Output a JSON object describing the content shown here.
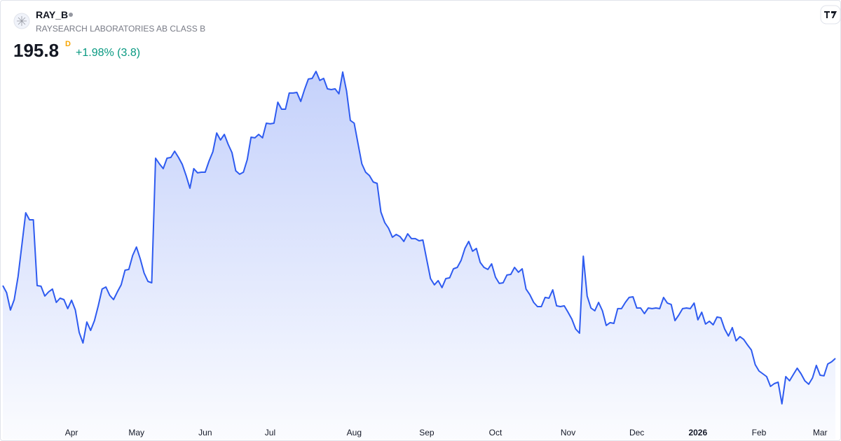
{
  "chart_data": {
    "type": "area",
    "symbol": "RAY_B",
    "subtitle": "RAYSEARCH LABORATORIES AB CLASS B",
    "last_price": 195.8,
    "interval": "D",
    "change": "+1.98% (3.8)",
    "color": "#2e5bf0",
    "ylim": [
      165,
      343.5
    ],
    "xlim": [
      0,
      218
    ],
    "xticks": [
      {
        "value": 18,
        "label": "Apr"
      },
      {
        "value": 35,
        "label": "May"
      },
      {
        "value": 53,
        "label": "Jun"
      },
      {
        "value": 70,
        "label": "Jul"
      },
      {
        "value": 92,
        "label": "Aug"
      },
      {
        "value": 111,
        "label": "Sep"
      },
      {
        "value": 129,
        "label": "Oct"
      },
      {
        "value": 148,
        "label": "Nov"
      },
      {
        "value": 166,
        "label": "Dec"
      },
      {
        "value": 182,
        "label": "2026"
      },
      {
        "value": 198,
        "label": "Feb"
      },
      {
        "value": 214,
        "label": "Mar"
      }
    ],
    "values": [
      232.2,
      228.7,
      220.0,
      225.2,
      236.8,
      252.5,
      268.6,
      265.1,
      265.1,
      232.2,
      231.9,
      227.0,
      229.1,
      230.5,
      223.8,
      225.9,
      225.2,
      220.7,
      224.9,
      220.0,
      208.8,
      203.5,
      214.0,
      209.8,
      214.7,
      222.1,
      230.5,
      231.5,
      227.3,
      225.2,
      229.1,
      232.6,
      239.9,
      240.3,
      247.3,
      251.5,
      245.5,
      238.5,
      234.3,
      233.6,
      295.9,
      293.1,
      290.7,
      295.9,
      296.3,
      299.4,
      296.3,
      292.8,
      287.2,
      280.9,
      290.7,
      288.6,
      288.9,
      288.9,
      294.5,
      299.1,
      308.5,
      305.0,
      307.8,
      302.9,
      298.7,
      289.6,
      287.9,
      288.9,
      295.2,
      306.4,
      306.1,
      307.8,
      306.1,
      313.4,
      313.1,
      313.4,
      323.9,
      320.4,
      320.4,
      328.5,
      328.5,
      328.8,
      324.3,
      330.2,
      335.5,
      335.8,
      339.3,
      334.8,
      335.8,
      330.6,
      330.2,
      330.6,
      328.1,
      339.0,
      329.5,
      314.8,
      313.4,
      303.3,
      293.1,
      288.9,
      287.2,
      284.0,
      283.3,
      269.0,
      263.7,
      260.9,
      256.4,
      257.8,
      256.7,
      254.3,
      258.1,
      255.7,
      255.7,
      254.6,
      255.0,
      245.2,
      235.7,
      232.6,
      234.7,
      231.2,
      235.7,
      236.1,
      240.6,
      241.3,
      244.8,
      250.8,
      254.3,
      249.4,
      250.8,
      243.8,
      241.3,
      240.3,
      243.1,
      236.4,
      233.3,
      233.6,
      237.5,
      237.8,
      241.3,
      238.9,
      240.6,
      230.5,
      227.7,
      223.8,
      221.7,
      221.7,
      226.3,
      225.9,
      230.1,
      222.1,
      221.7,
      222.1,
      218.9,
      215.4,
      210.5,
      208.4,
      246.9,
      227.0,
      221.0,
      219.6,
      223.8,
      219.6,
      212.3,
      213.7,
      213.3,
      220.7,
      220.7,
      223.8,
      226.3,
      226.6,
      221.0,
      221.0,
      218.2,
      221.0,
      220.7,
      221.0,
      220.7,
      226.3,
      223.5,
      222.8,
      214.7,
      217.5,
      220.7,
      221.0,
      220.7,
      223.5,
      215.1,
      218.9,
      213.0,
      214.4,
      212.6,
      216.5,
      216.1,
      210.5,
      207.0,
      211.2,
      204.6,
      206.7,
      205.3,
      202.5,
      200.0,
      192.7,
      189.5,
      188.1,
      186.7,
      181.8,
      183.2,
      183.9,
      173.1,
      186.7,
      184.6,
      187.8,
      190.9,
      188.1,
      184.6,
      182.9,
      186.0,
      192.3,
      187.4,
      187.1,
      193.0,
      194.1,
      195.8
    ]
  }
}
